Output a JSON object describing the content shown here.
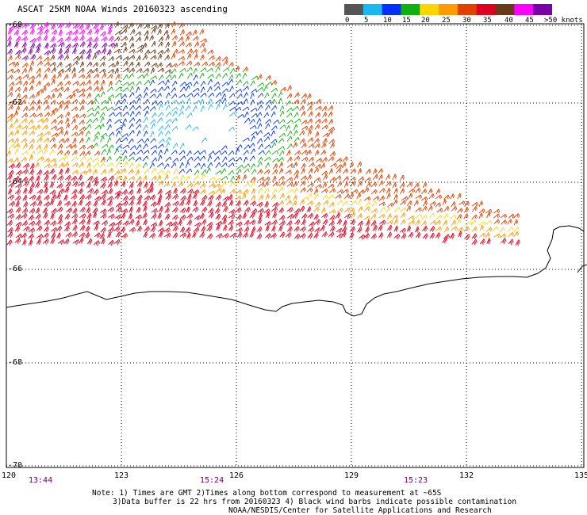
{
  "title": "ASCAT 25KM NOAA Winds 20160323 ascending",
  "legend": {
    "labels": [
      "0",
      "5",
      "10",
      "15",
      "20",
      "25",
      "30",
      "35",
      "40",
      "45",
      ">50 knots"
    ],
    "colors": [
      "#555555",
      "#19b8f0",
      "#0030ff",
      "#10b010",
      "#ffd400",
      "#ff9a00",
      "#e04000",
      "#e00020",
      "#6a3a18",
      "#ff00ff",
      "#7a00a8"
    ]
  },
  "lat_labels": [
    "-60",
    "-62",
    "-64",
    "-66",
    "-68",
    "-70"
  ],
  "lon_labels": [
    "120",
    "123",
    "126",
    "129",
    "132",
    "135"
  ],
  "time_labels": [
    "13:44",
    "15:24",
    "15:23"
  ],
  "notes": {
    "line1": "Note: 1) Times are GMT 2)Times along bottom correspond to measurement at ~65S",
    "line2": "3)Data buffer is 22 hrs from 20160323 4) Black wind barbs indicate possible contamination",
    "line3": "NOAA/NESDIS/Center for Satellite Applications and Research"
  }
}
